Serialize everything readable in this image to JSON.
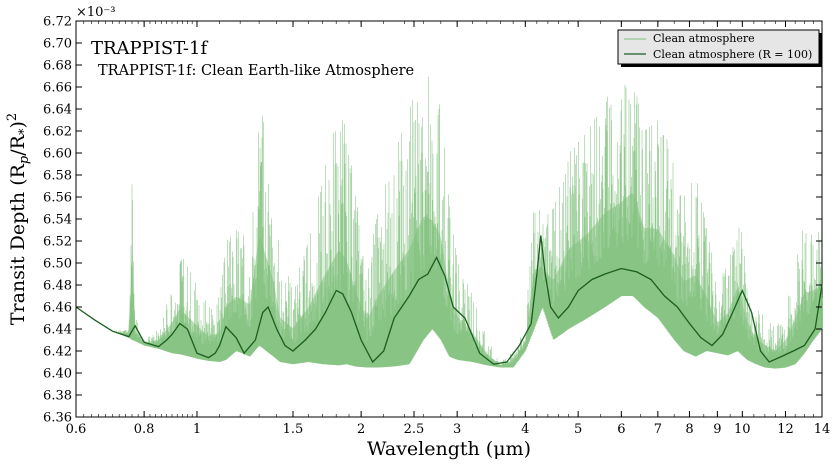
{
  "chart_data": {
    "type": "line",
    "panel_label": "TRAPPIST-1f",
    "title": "TRAPPIST-1f: Clean Earth-like Atmosphere",
    "xlabel": "Wavelength (μm)",
    "ylabel": "Transit Depth (Rp/R*)²",
    "y_multiplier": "×10⁻³",
    "x_scale": "log",
    "xlim": [
      0.6,
      14
    ],
    "ylim": [
      6.36,
      6.72
    ],
    "x_ticks": [
      0.6,
      0.8,
      1,
      1.5,
      2,
      2.5,
      3,
      4,
      5,
      6,
      7,
      8,
      9,
      10,
      12,
      14
    ],
    "x_tick_labels": [
      "0.6",
      "0.8",
      "1",
      "1.5",
      "2",
      "2.5",
      "3",
      "4",
      "5",
      "6",
      "7",
      "8",
      "9",
      "10",
      "12",
      "14"
    ],
    "y_ticks": [
      6.36,
      6.38,
      6.4,
      6.42,
      6.44,
      6.46,
      6.48,
      6.5,
      6.52,
      6.54,
      6.56,
      6.58,
      6.6,
      6.62,
      6.64,
      6.66,
      6.68,
      6.7,
      6.72
    ],
    "y_tick_labels": [
      "6.36",
      "6.38",
      "6.40",
      "6.42",
      "6.44",
      "6.46",
      "6.48",
      "6.50",
      "6.52",
      "6.54",
      "6.56",
      "6.58",
      "6.60",
      "6.62",
      "6.64",
      "6.66",
      "6.68",
      "6.70",
      "6.72"
    ],
    "legend": {
      "placement": "top-right",
      "entries": [
        "Clean atmosphere",
        "Clean atmosphere (R = 100)"
      ]
    },
    "colors": {
      "high_res": "#7fbf7b",
      "binned": "#1b5e20"
    },
    "series": [
      {
        "name": "Clean atmosphere",
        "style": "thin light green, high resolution",
        "x": [
          0.6,
          0.65,
          0.7,
          0.75,
          0.76,
          0.77,
          0.8,
          0.85,
          0.9,
          0.93,
          0.95,
          1.0,
          1.05,
          1.1,
          1.13,
          1.18,
          1.25,
          1.3,
          1.38,
          1.42,
          1.5,
          1.6,
          1.7,
          1.82,
          1.88,
          1.95,
          2.05,
          2.15,
          2.3,
          2.45,
          2.6,
          2.7,
          2.8,
          2.9,
          3.0,
          3.2,
          3.4,
          3.6,
          3.8,
          4.0,
          4.15,
          4.3,
          4.5,
          4.8,
          5.2,
          5.6,
          6.0,
          6.3,
          6.6,
          7.0,
          7.5,
          7.8,
          8.2,
          8.6,
          9.0,
          9.4,
          9.8,
          10.2,
          10.6,
          11.0,
          11.5,
          12.0,
          12.5,
          13.0,
          13.5,
          14.0
        ],
        "lower": [
          6.46,
          6.448,
          6.438,
          6.432,
          6.43,
          6.429,
          6.425,
          6.422,
          6.418,
          6.417,
          6.416,
          6.413,
          6.411,
          6.41,
          6.412,
          6.42,
          6.415,
          6.425,
          6.415,
          6.41,
          6.408,
          6.41,
          6.408,
          6.407,
          6.408,
          6.406,
          6.405,
          6.405,
          6.406,
          6.408,
          6.43,
          6.44,
          6.43,
          6.415,
          6.412,
          6.41,
          6.407,
          6.405,
          6.405,
          6.42,
          6.44,
          6.46,
          6.43,
          6.44,
          6.45,
          6.46,
          6.47,
          6.47,
          6.46,
          6.45,
          6.43,
          6.42,
          6.415,
          6.42,
          6.418,
          6.416,
          6.42,
          6.412,
          6.408,
          6.405,
          6.404,
          6.405,
          6.408,
          6.418,
          6.43,
          6.44
        ],
        "upper": [
          6.46,
          6.448,
          6.438,
          6.44,
          6.61,
          6.45,
          6.43,
          6.44,
          6.48,
          6.51,
          6.5,
          6.48,
          6.46,
          6.47,
          6.52,
          6.53,
          6.52,
          6.65,
          6.57,
          6.5,
          6.48,
          6.52,
          6.58,
          6.64,
          6.62,
          6.56,
          6.5,
          6.55,
          6.6,
          6.64,
          6.68,
          6.66,
          6.64,
          6.55,
          6.5,
          6.47,
          6.43,
          6.41,
          6.42,
          6.44,
          6.56,
          6.54,
          6.55,
          6.6,
          6.62,
          6.65,
          6.66,
          6.68,
          6.62,
          6.63,
          6.6,
          6.56,
          6.58,
          6.53,
          6.48,
          6.5,
          6.55,
          6.49,
          6.46,
          6.45,
          6.44,
          6.46,
          6.5,
          6.54,
          6.53,
          6.53
        ]
      },
      {
        "name": "Clean atmosphere (R = 100)",
        "style": "dark green, binned",
        "x": [
          0.6,
          0.65,
          0.7,
          0.75,
          0.77,
          0.8,
          0.85,
          0.88,
          0.9,
          0.93,
          0.96,
          1.0,
          1.05,
          1.08,
          1.1,
          1.13,
          1.18,
          1.22,
          1.28,
          1.32,
          1.35,
          1.4,
          1.45,
          1.5,
          1.58,
          1.65,
          1.72,
          1.8,
          1.85,
          1.92,
          2.0,
          2.1,
          2.2,
          2.3,
          2.45,
          2.55,
          2.65,
          2.75,
          2.85,
          2.95,
          3.1,
          3.3,
          3.5,
          3.7,
          3.9,
          4.1,
          4.2,
          4.27,
          4.35,
          4.45,
          4.6,
          4.8,
          5.0,
          5.3,
          5.6,
          6.0,
          6.4,
          6.8,
          7.2,
          7.6,
          8.0,
          8.4,
          8.8,
          9.2,
          9.6,
          10.0,
          10.4,
          10.8,
          11.2,
          11.8,
          12.4,
          13.0,
          13.6,
          14.0
        ],
        "y": [
          6.46,
          6.448,
          6.438,
          6.433,
          6.443,
          6.428,
          6.424,
          6.43,
          6.435,
          6.445,
          6.44,
          6.418,
          6.414,
          6.418,
          6.425,
          6.442,
          6.432,
          6.418,
          6.43,
          6.455,
          6.46,
          6.44,
          6.425,
          6.42,
          6.43,
          6.44,
          6.455,
          6.475,
          6.472,
          6.455,
          6.43,
          6.41,
          6.42,
          6.45,
          6.47,
          6.485,
          6.49,
          6.505,
          6.488,
          6.46,
          6.45,
          6.418,
          6.408,
          6.41,
          6.425,
          6.445,
          6.49,
          6.525,
          6.49,
          6.46,
          6.45,
          6.46,
          6.475,
          6.485,
          6.49,
          6.495,
          6.492,
          6.485,
          6.47,
          6.46,
          6.445,
          6.432,
          6.425,
          6.435,
          6.455,
          6.475,
          6.455,
          6.42,
          6.41,
          6.415,
          6.42,
          6.425,
          6.44,
          6.48
        ]
      }
    ]
  }
}
